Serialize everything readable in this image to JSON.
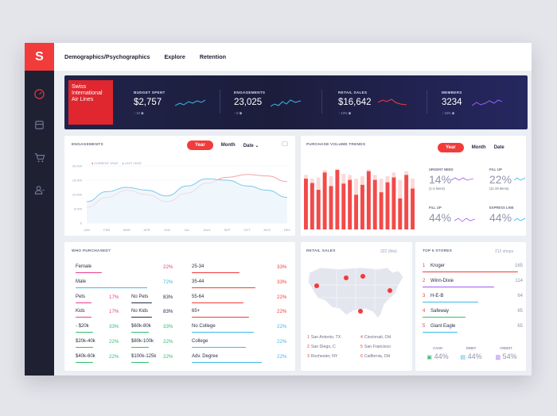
{
  "nav": {
    "items": [
      "Demographics/Psychographics",
      "Explore",
      "Retention"
    ]
  },
  "sidebar": {
    "logo": "S",
    "icons": [
      "speedometer-icon",
      "bank-icon",
      "cart-icon",
      "users-icon"
    ]
  },
  "brand": {
    "name": "Swiss International Air Lines"
  },
  "kpis": [
    {
      "label": "BUDGET SPENT",
      "value": "$2,757",
      "change": "↑ 10 ⬢",
      "spark_color": "#3fb9e8"
    },
    {
      "label": "ENGAGEMENTS",
      "value": "23,025",
      "change": "↑ 8 ⬢",
      "spark_color": "#3fb9e8"
    },
    {
      "label": "RETAIL SALES",
      "value": "$16,642",
      "change": "↑ 10% ⬢",
      "spark_color": "#f23b3b"
    },
    {
      "label": "MEMBERS",
      "value": "3234",
      "change": "↑ 18% ⬢",
      "spark_color": "#9b5cf6"
    }
  ],
  "engagements": {
    "title": "ENGAGEMENTS",
    "tabs": [
      "Year",
      "Month",
      "Date ⌄"
    ],
    "legend": [
      "CURRENT YEAR",
      "LAST YEAR"
    ],
    "chart_data": {
      "type": "line",
      "categories": [
        "JAN",
        "FEB",
        "MAR",
        "APR",
        "JUN",
        "JUL",
        "AUG",
        "SEP",
        "OCT",
        "NOV",
        "DEC"
      ],
      "ylim": [
        0,
        20000
      ],
      "yticks": [
        "20,000",
        "15,000",
        "10,000",
        "5,000",
        "0"
      ],
      "series": [
        {
          "name": "CURRENT YEAR",
          "values": [
            5500,
            9000,
            11500,
            10000,
            7500,
            10500,
            14000,
            16000,
            17000,
            16500,
            14500
          ]
        },
        {
          "name": "LAST YEAR",
          "values": [
            7500,
            11000,
            12500,
            11500,
            9500,
            13000,
            15500,
            15000,
            13000,
            11500,
            9000
          ]
        }
      ]
    }
  },
  "purchase": {
    "title": "PURCHASE VOLUME TRENDS",
    "tabs": [
      "Year",
      "Month",
      "Date"
    ],
    "chart_data": {
      "type": "bar",
      "values": [
        0.82,
        0.75,
        0.64,
        0.92,
        0.7,
        0.96,
        0.74,
        0.8,
        0.56,
        0.72,
        0.94,
        0.8,
        0.6,
        0.76,
        0.84,
        0.5,
        0.88,
        0.66
      ],
      "background": [
        0.88,
        0.82,
        0.84,
        0.96,
        0.86,
        0.98,
        0.9,
        0.88,
        0.82,
        0.86,
        0.97,
        0.88,
        0.82,
        0.86,
        0.92,
        0.8,
        0.94,
        0.82
      ]
    },
    "stats": [
      {
        "label": "URGENT NEED",
        "value": "14%",
        "sub": "(1-2 items)",
        "color": "#9b5cf6"
      },
      {
        "label": "FILL UP",
        "value": "22%",
        "sub": "(11-20 items)",
        "color": "#3fb9e8"
      },
      {
        "label": "FILL UP",
        "value": "44%",
        "sub": "",
        "color": "#9b5cf6"
      },
      {
        "label": "EXPRESS LINE",
        "value": "44%",
        "sub": "",
        "color": "#3fb9e8"
      }
    ]
  },
  "who": {
    "title": "WHO PURCHASED?",
    "left": [
      {
        "label": "Female",
        "pct": "22%",
        "color": "#ea3d8a",
        "fill": 0.22
      },
      {
        "label": "Male",
        "pct": "72%",
        "color": "#3fb9e8",
        "fill": 0.72
      }
    ],
    "pets": [
      {
        "a": "Pets",
        "ap": "17%",
        "b": "No Pets",
        "bp": "83%"
      },
      {
        "a": "Kids",
        "ap": "17%",
        "b": "No Kids",
        "bp": "83%"
      }
    ],
    "income": [
      {
        "a": "- $20k",
        "ap": "33%",
        "b": "$60k-80k",
        "bp": "33%"
      },
      {
        "a": "$20k-40k",
        "ap": "22%",
        "b": "$80k-100k",
        "bp": "22%"
      },
      {
        "a": "$40k-60k",
        "ap": "22%",
        "b": "$100k-125k",
        "bp": "22%"
      }
    ],
    "age": [
      {
        "label": "25-34",
        "pct": "33%",
        "fill": 0.33
      },
      {
        "label": "35-44",
        "pct": "33%",
        "fill": 0.33
      },
      {
        "label": "55-64",
        "pct": "22%",
        "fill": 0.22
      },
      {
        "label": "65+",
        "pct": "22%",
        "fill": 0.22
      }
    ],
    "edu": [
      {
        "label": "No College",
        "pct": "22%",
        "fill": 0.22
      },
      {
        "label": "College",
        "pct": "22%",
        "fill": 0.22
      },
      {
        "label": "Adv. Degree",
        "pct": "22%",
        "fill": 0.22
      }
    ]
  },
  "retail": {
    "title": "RETAIL SALES",
    "count": "322 (fdsi)",
    "cities": [
      {
        "n": "1",
        "name": "San Antonio, TX"
      },
      {
        "n": "4",
        "name": "Cincinnati, OH"
      },
      {
        "n": "2",
        "name": "San Diego, C"
      },
      {
        "n": "5",
        "name": "San Francisco"
      },
      {
        "n": "3",
        "name": "Rochester, NY"
      },
      {
        "n": "6",
        "name": "California, OH"
      }
    ]
  },
  "stores": {
    "title": "TOP 5 STORES",
    "count": "212 shops",
    "items": [
      {
        "n": "1",
        "name": "Kroger",
        "count": "165",
        "fill": 0.95
      },
      {
        "n": "2",
        "name": "Winn-Dixie",
        "count": "114",
        "fill": 0.72
      },
      {
        "n": "3",
        "name": "H-E-B",
        "count": "64",
        "fill": 0.55
      },
      {
        "n": "4",
        "name": "Safeway",
        "count": "65",
        "fill": 0.42
      },
      {
        "n": "5",
        "name": "Giant Eagle",
        "count": "65",
        "fill": 0.35
      }
    ],
    "payments": [
      {
        "label": "CASH",
        "value": "44%"
      },
      {
        "label": "DEBIT",
        "value": "44%"
      },
      {
        "label": "CREDIT",
        "value": "54%"
      }
    ]
  }
}
